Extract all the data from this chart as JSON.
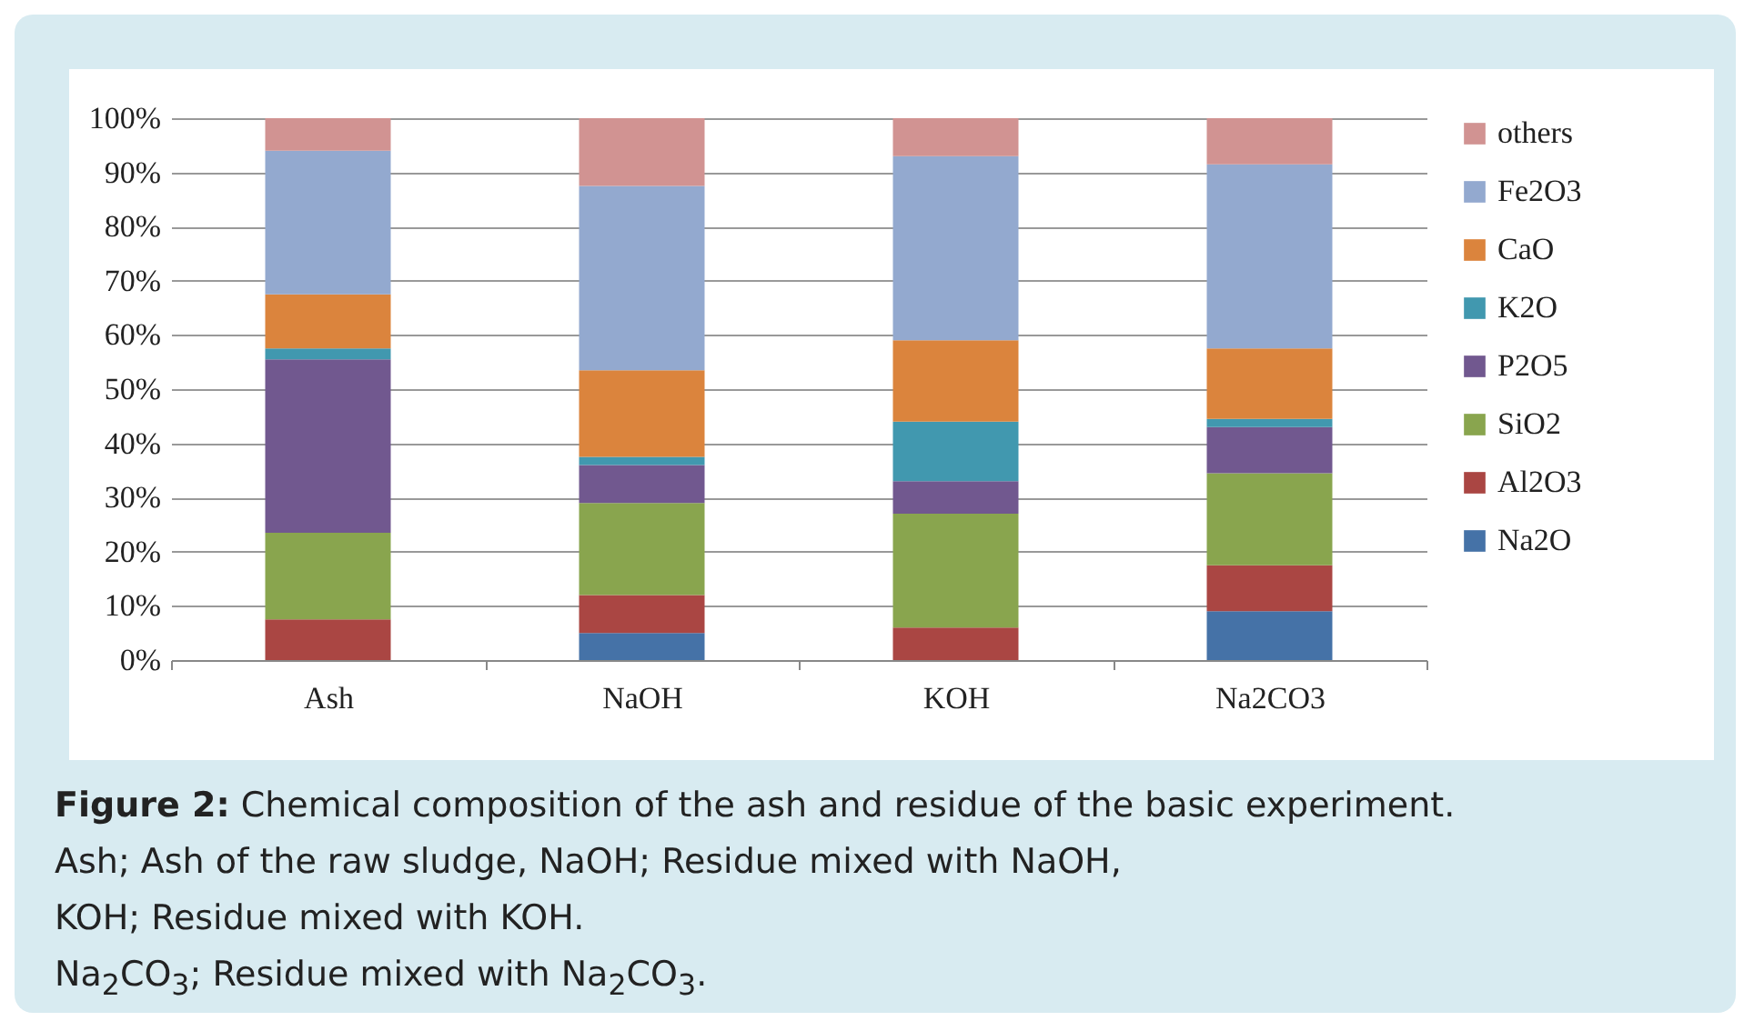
{
  "chart_data": {
    "type": "bar",
    "stacked": true,
    "categories": [
      "Ash",
      "NaOH",
      "KOH",
      "Na2CO3"
    ],
    "series": [
      {
        "name": "Na2O",
        "color": "#4572a7",
        "values": [
          0,
          5,
          0,
          9
        ]
      },
      {
        "name": "Al2O3",
        "color": "#aa4643",
        "values": [
          7.5,
          7,
          6,
          8.5
        ]
      },
      {
        "name": "SiO2",
        "color": "#89a54e",
        "values": [
          16,
          17,
          21,
          17
        ]
      },
      {
        "name": "P2O5",
        "color": "#71588f",
        "values": [
          32,
          7,
          6,
          8.5
        ]
      },
      {
        "name": "K2O",
        "color": "#4198af",
        "values": [
          2,
          1.5,
          11,
          1.5
        ]
      },
      {
        "name": "CaO",
        "color": "#db843d",
        "values": [
          10,
          16,
          15,
          13
        ]
      },
      {
        "name": "Fe2O3",
        "color": "#93a9cf",
        "values": [
          26.5,
          34,
          34,
          34
        ]
      },
      {
        "name": "others",
        "color": "#d19392",
        "values": [
          6,
          12.5,
          7,
          8.5
        ]
      }
    ],
    "ylim": [
      0,
      100
    ],
    "yticks": [
      {
        "value": 0,
        "label": "0%"
      },
      {
        "value": 10,
        "label": "10%"
      },
      {
        "value": 20,
        "label": "20%"
      },
      {
        "value": 30,
        "label": "30%"
      },
      {
        "value": 40,
        "label": "40%"
      },
      {
        "value": 50,
        "label": "50%"
      },
      {
        "value": 60,
        "label": "60%"
      },
      {
        "value": 70,
        "label": "70%"
      },
      {
        "value": 80,
        "label": "80%"
      },
      {
        "value": 90,
        "label": "90%"
      },
      {
        "value": 100,
        "label": "100%"
      }
    ],
    "grid": "y",
    "legend": "right",
    "annotations": [
      "Figure 2: Chemical composition of the ash and residue of the basic experiment.",
      "Ash; Ash of the raw sludge, NaOH; Residue mixed with NaOH,",
      "KOH; Residue mixed with KOH.",
      "Na$_{2}$CO$_{3}$; Residue mixed with Na$_{2}$CO$_{3}$."
    ]
  }
}
